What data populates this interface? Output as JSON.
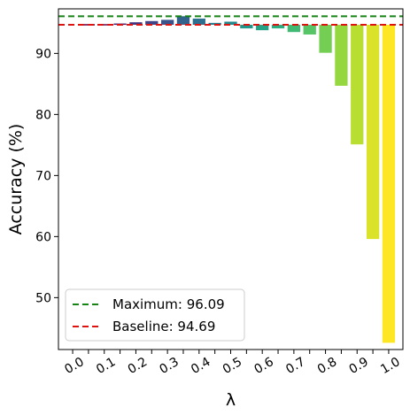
{
  "chart_data": {
    "type": "bar",
    "xlabel": "λ",
    "ylabel": "Accuracy (%)",
    "x_tick_labels": [
      "0.0",
      "0.1",
      "0.2",
      "0.3",
      "0.4",
      "0.5",
      "0.6",
      "0.7",
      "0.8",
      "0.9",
      "1.0"
    ],
    "x": [
      0.05,
      0.1,
      0.15,
      0.2,
      0.25,
      0.3,
      0.35,
      0.4,
      0.45,
      0.5,
      0.55,
      0.6,
      0.65,
      0.7,
      0.75,
      0.8,
      0.85,
      0.9,
      0.95,
      1.0
    ],
    "values": [
      94.8,
      94.8,
      94.9,
      95.1,
      95.3,
      95.5,
      96.09,
      95.7,
      95.0,
      95.2,
      94.1,
      93.8,
      94.1,
      93.5,
      93.1,
      90.1,
      84.7,
      75.1,
      59.6,
      42.6
    ],
    "baseline": {
      "label": "Baseline: 94.69",
      "value": 94.69,
      "color": "#e0120f"
    },
    "maximum": {
      "label": "Maximum: 96.09",
      "value": 96.09,
      "color": "#168516"
    },
    "y_ticks": [
      50,
      60,
      70,
      80,
      90
    ],
    "ylim": [
      41.5,
      97.3
    ],
    "xlim": [
      -0.045,
      1.045
    ],
    "legend_position": "lower-left",
    "colormap": "viridis",
    "grid": false
  }
}
